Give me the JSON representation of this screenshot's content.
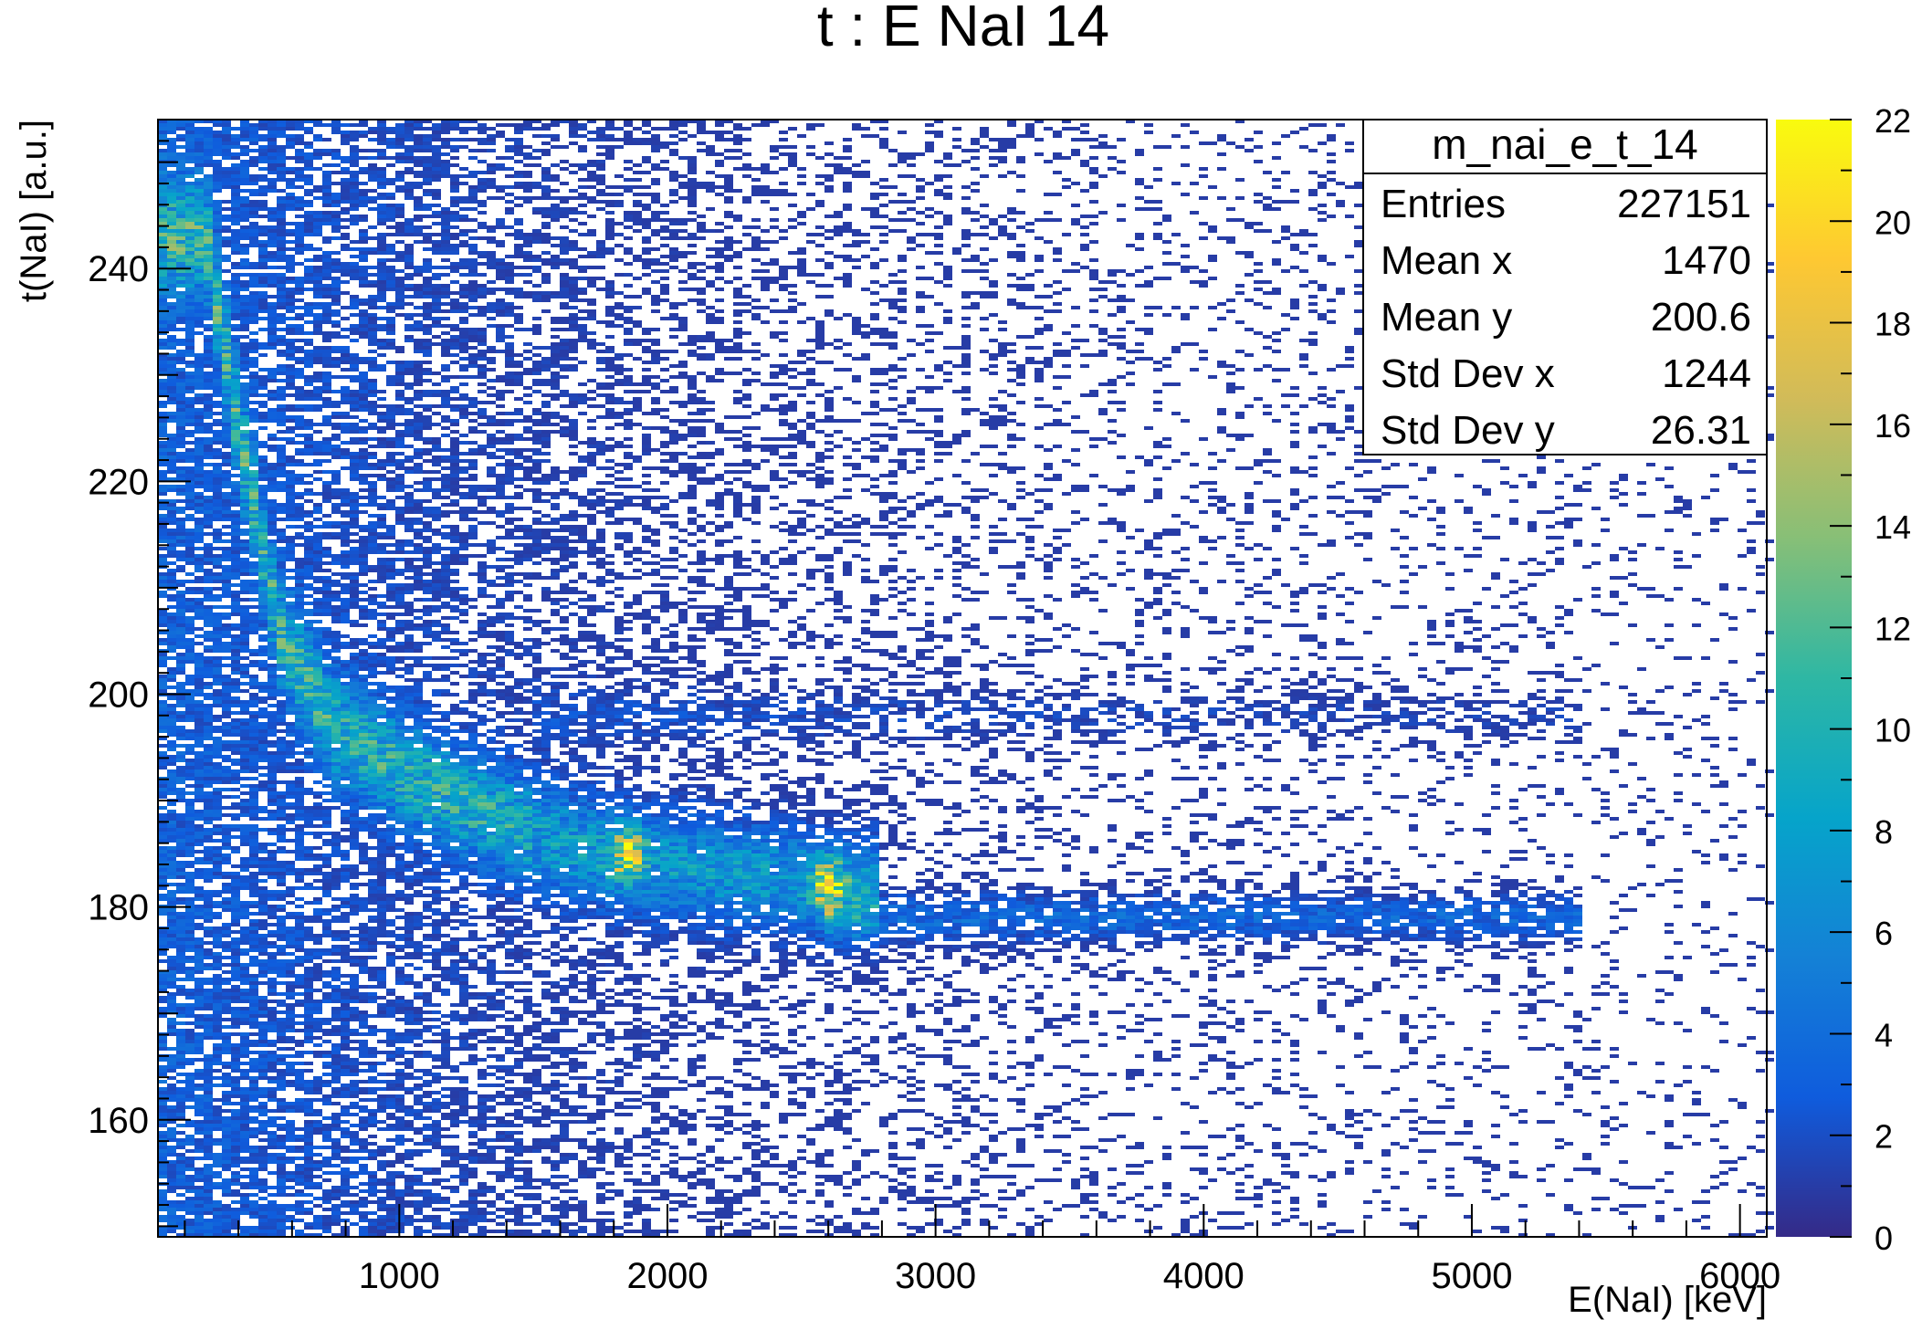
{
  "chart_data": {
    "type": "heatmap",
    "title": "t : E NaI 14",
    "xlabel": "E(NaI) [keV]",
    "ylabel": "t(NaI) [a.u.]",
    "xlim": [
      100,
      6100
    ],
    "ylim": [
      149,
      254
    ],
    "x_ticks": [
      1000,
      2000,
      3000,
      4000,
      5000,
      6000
    ],
    "y_ticks": [
      160,
      180,
      200,
      220,
      240
    ],
    "colorbar": {
      "min": 0,
      "max": 22,
      "ticks": [
        0,
        2,
        4,
        6,
        8,
        10,
        12,
        14,
        16,
        18,
        20,
        22
      ],
      "palette": [
        "#352a87",
        "#0f5cdd",
        "#1481d6",
        "#06a4ca",
        "#2eb7a4",
        "#87bf77",
        "#d1bb59",
        "#fec832",
        "#f9fb0e"
      ]
    },
    "stats": {
      "name": "m_nai_e_t_14",
      "rows": [
        {
          "label": "Entries",
          "value": "227151"
        },
        {
          "label": "Mean x",
          "value": "1470"
        },
        {
          "label": "Mean y",
          "value": "200.6"
        },
        {
          "label": "Std Dev x",
          "value": "1244"
        },
        {
          "label": "Std Dev y",
          "value": "26.31"
        }
      ]
    },
    "features": [
      {
        "kind": "curved_band",
        "points": [
          [
            280,
            243
          ],
          [
            400,
            225
          ],
          [
            550,
            206
          ],
          [
            750,
            197
          ],
          [
            1000,
            193
          ],
          [
            1300,
            189
          ],
          [
            1600,
            186
          ],
          [
            1850,
            184.5
          ],
          [
            2600,
            182
          ]
        ]
      },
      {
        "kind": "hotspot",
        "x": 1850,
        "y": 185,
        "count": 18
      },
      {
        "kind": "hotspot",
        "x": 2600,
        "y": 182,
        "count": 20
      },
      {
        "kind": "horizontal_band",
        "x_range": [
          2600,
          5400
        ],
        "y": 179
      },
      {
        "kind": "horizontal_band",
        "x_range": [
          1500,
          5400
        ],
        "y": 198
      }
    ]
  }
}
